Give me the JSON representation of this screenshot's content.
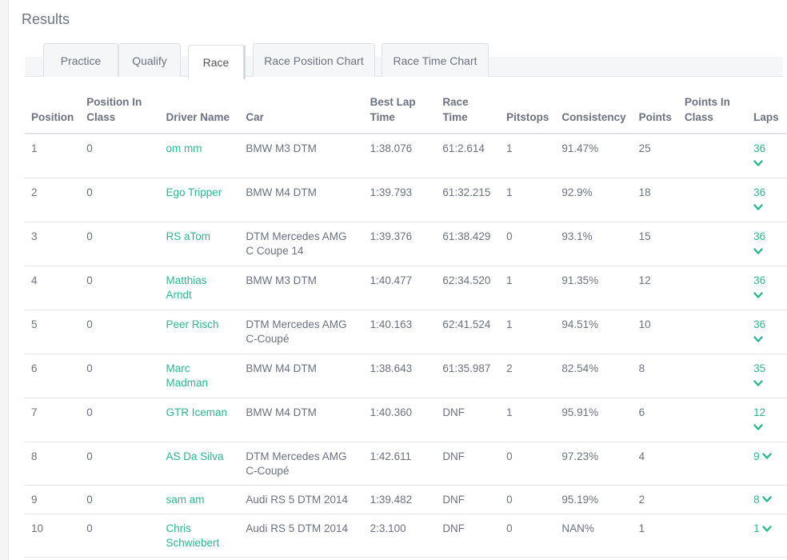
{
  "title": "Results",
  "tabs": [
    {
      "label": "Practice"
    },
    {
      "label": "Qualify"
    },
    {
      "label": "Race"
    },
    {
      "label": "Race Position Chart"
    },
    {
      "label": "Race Time Chart"
    }
  ],
  "active_tab": "Race",
  "accent_color": "#2db591",
  "columns": [
    "Position",
    "Position In Class",
    "Driver Name",
    "Car",
    "Best Lap Time",
    "Race Time",
    "Pitstops",
    "Consistency",
    "Points",
    "Points In Class",
    "Laps"
  ],
  "rows": [
    {
      "position": "1",
      "position_in_class": "0",
      "driver": "om mm",
      "car": "BMW M3 DTM",
      "best_lap": "1:38.076",
      "race_time": "61:2.614",
      "pitstops": "1",
      "consistency": "91.47%",
      "points": "25",
      "points_in_class": "",
      "laps": "36"
    },
    {
      "position": "2",
      "position_in_class": "0",
      "driver": "Ego Tripper",
      "car": "BMW M4 DTM",
      "best_lap": "1:39.793",
      "race_time": "61:32.215",
      "pitstops": "1",
      "consistency": "92.9%",
      "points": "18",
      "points_in_class": "",
      "laps": "36"
    },
    {
      "position": "3",
      "position_in_class": "0",
      "driver": "RS aTom",
      "car": "DTM Mercedes AMG C Coupe 14",
      "best_lap": "1:39.376",
      "race_time": "61:38.429",
      "pitstops": "0",
      "consistency": "93.1%",
      "points": "15",
      "points_in_class": "",
      "laps": "36"
    },
    {
      "position": "4",
      "position_in_class": "0",
      "driver": "Matthias Arndt",
      "car": "BMW M3 DTM",
      "best_lap": "1:40.477",
      "race_time": "62:34.520",
      "pitstops": "1",
      "consistency": "91.35%",
      "points": "12",
      "points_in_class": "",
      "laps": "36"
    },
    {
      "position": "5",
      "position_in_class": "0",
      "driver": "Peer Risch",
      "car": "DTM Mercedes AMG C-Coupé",
      "best_lap": "1:40.163",
      "race_time": "62:41.524",
      "pitstops": "1",
      "consistency": "94.51%",
      "points": "10",
      "points_in_class": "",
      "laps": "36"
    },
    {
      "position": "6",
      "position_in_class": "0",
      "driver": "Marc Madman",
      "car": "BMW M4 DTM",
      "best_lap": "1:38.643",
      "race_time": "61:35.987",
      "pitstops": "2",
      "consistency": "82.54%",
      "points": "8",
      "points_in_class": "",
      "laps": "35"
    },
    {
      "position": "7",
      "position_in_class": "0",
      "driver": "GTR Iceman",
      "car": "BMW M4 DTM",
      "best_lap": "1:40.360",
      "race_time": "DNF",
      "pitstops": "1",
      "consistency": "95.91%",
      "points": "6",
      "points_in_class": "",
      "laps": "12"
    },
    {
      "position": "8",
      "position_in_class": "0",
      "driver": "AS Da Silva",
      "car": "DTM Mercedes AMG C-Coupé",
      "best_lap": "1:42.611",
      "race_time": "DNF",
      "pitstops": "0",
      "consistency": "97.23%",
      "points": "4",
      "points_in_class": "",
      "laps": "9"
    },
    {
      "position": "9",
      "position_in_class": "0",
      "driver": "sam am",
      "car": "Audi RS 5 DTM 2014",
      "best_lap": "1:39.482",
      "race_time": "DNF",
      "pitstops": "0",
      "consistency": "95.19%",
      "points": "2",
      "points_in_class": "",
      "laps": "8"
    },
    {
      "position": "10",
      "position_in_class": "0",
      "driver": "Chris Schwiebert",
      "car": "Audi RS 5 DTM 2014",
      "best_lap": "2:3.100",
      "race_time": "DNF",
      "pitstops": "0",
      "consistency": "NAN%",
      "points": "1",
      "points_in_class": "",
      "laps": "1"
    }
  ],
  "icons": {
    "expand": "chevron-down-icon"
  }
}
